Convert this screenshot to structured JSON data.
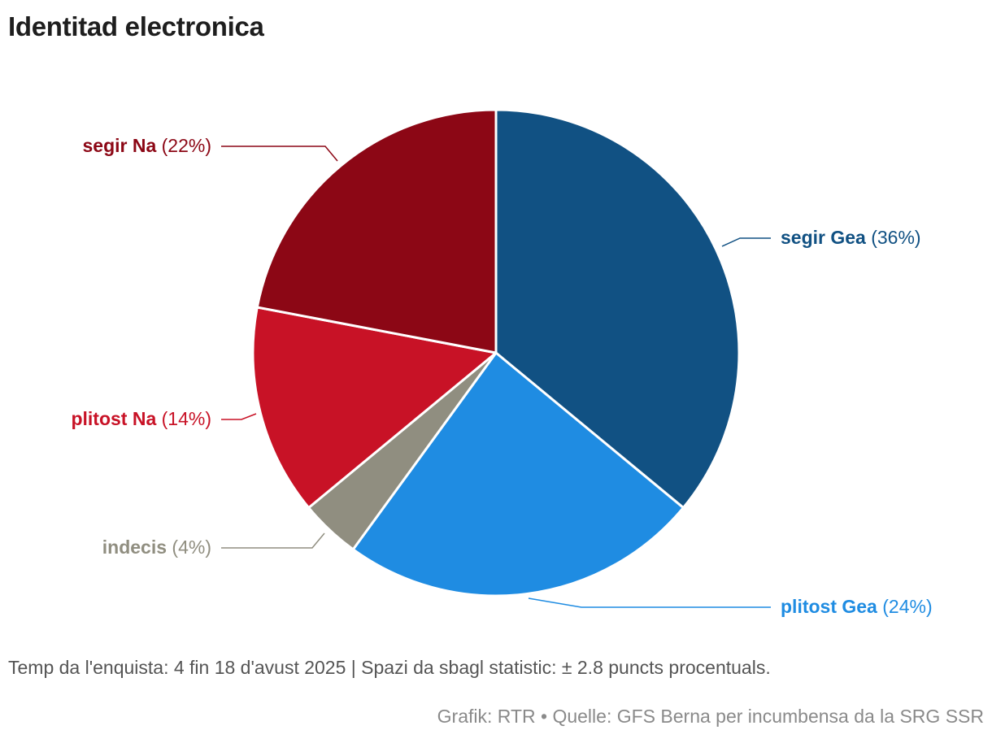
{
  "chart_data": {
    "type": "pie",
    "title": "Identitad electronica",
    "slices": [
      {
        "name": "segir Gea",
        "value": 36,
        "label_value": "(36%)",
        "color": "#115183",
        "side": "right"
      },
      {
        "name": "plitost Gea",
        "value": 24,
        "label_value": "(24%)",
        "color": "#1f8ce2",
        "side": "right"
      },
      {
        "name": "indecis",
        "value": 4,
        "label_value": "(4%)",
        "color": "#908e80",
        "side": "left"
      },
      {
        "name": "plitost Na",
        "value": 14,
        "label_value": "(14%)",
        "color": "#c81226",
        "side": "left"
      },
      {
        "name": "segir Na",
        "value": 22,
        "label_value": "(22%)",
        "color": "#8c0715",
        "side": "left"
      }
    ],
    "start": "top, clockwise",
    "footnote": "Temp da l'enquista: 4 fin 18 d'avust 2025 | Spazi da sbagl statistic: ± 2.8 puncts procentuals.",
    "credits": "Grafik: RTR • Quelle: GFS Berna per incumbensa da la SRG SSR"
  }
}
